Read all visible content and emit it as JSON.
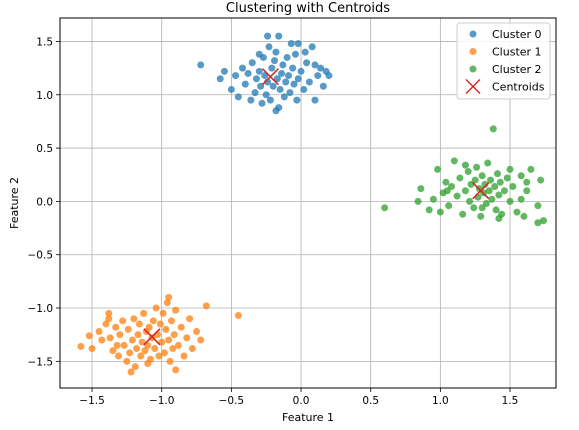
{
  "chart_data": {
    "type": "scatter",
    "title": "Clustering with Centroids",
    "xlabel": "Feature 1",
    "ylabel": "Feature 2",
    "xlim": [
      -1.73,
      1.83
    ],
    "ylim": [
      -1.75,
      1.72
    ],
    "xticks": [
      -1.5,
      -1.0,
      -0.5,
      0.0,
      0.5,
      1.0,
      1.5
    ],
    "xtick_labels": [
      "−1.5",
      "−1.0",
      "−0.5",
      "0.0",
      "0.5",
      "1.0",
      "1.5"
    ],
    "yticks": [
      -1.5,
      -1.0,
      -0.5,
      0.0,
      0.5,
      1.0,
      1.5
    ],
    "ytick_labels": [
      "−1.5",
      "−1.0",
      "−0.5",
      "0.0",
      "0.5",
      "1.0",
      "1.5"
    ],
    "grid": true,
    "legend": {
      "position": "top-right"
    },
    "series": [
      {
        "name": "Cluster 0",
        "color": "#1f77b4",
        "points": [
          [
            -0.72,
            1.28
          ],
          [
            -0.58,
            1.15
          ],
          [
            -0.55,
            1.22
          ],
          [
            -0.5,
            1.05
          ],
          [
            -0.47,
            1.18
          ],
          [
            -0.45,
            0.98
          ],
          [
            -0.42,
            1.25
          ],
          [
            -0.4,
            1.1
          ],
          [
            -0.38,
            1.2
          ],
          [
            -0.36,
            0.95
          ],
          [
            -0.35,
            1.3
          ],
          [
            -0.33,
            1.02
          ],
          [
            -0.32,
            1.15
          ],
          [
            -0.3,
            1.22
          ],
          [
            -0.29,
            1.08
          ],
          [
            -0.28,
            0.92
          ],
          [
            -0.27,
            1.35
          ],
          [
            -0.26,
            1.18
          ],
          [
            -0.25,
            1.0
          ],
          [
            -0.24,
            1.12
          ],
          [
            -0.23,
            1.45
          ],
          [
            -0.22,
            0.95
          ],
          [
            -0.21,
            1.25
          ],
          [
            -0.2,
            1.08
          ],
          [
            -0.19,
            1.32
          ],
          [
            -0.18,
            1.4
          ],
          [
            -0.17,
            1.15
          ],
          [
            -0.16,
            0.88
          ],
          [
            -0.15,
            1.05
          ],
          [
            -0.14,
            1.2
          ],
          [
            -0.13,
            1.28
          ],
          [
            -0.12,
            0.98
          ],
          [
            -0.11,
            1.12
          ],
          [
            -0.1,
            1.35
          ],
          [
            -0.09,
            1.18
          ],
          [
            -0.08,
            1.02
          ],
          [
            -0.07,
            1.48
          ],
          [
            -0.06,
            1.25
          ],
          [
            -0.05,
            1.1
          ],
          [
            -0.04,
            1.38
          ],
          [
            -0.03,
            0.95
          ],
          [
            -0.02,
            1.15
          ],
          [
            0.0,
            1.22
          ],
          [
            0.02,
            1.05
          ],
          [
            0.04,
            1.3
          ],
          [
            0.06,
            1.12
          ],
          [
            0.08,
            1.45
          ],
          [
            0.1,
            0.95
          ],
          [
            0.12,
            1.18
          ],
          [
            0.14,
            1.25
          ],
          [
            0.16,
            1.08
          ],
          [
            0.18,
            1.22
          ],
          [
            0.2,
            1.18
          ],
          [
            -0.18,
            0.85
          ],
          [
            -0.16,
            1.55
          ],
          [
            -0.24,
            1.55
          ],
          [
            -0.3,
            1.38
          ],
          [
            -0.02,
            1.48
          ],
          [
            0.03,
            1.4
          ],
          [
            0.1,
            1.28
          ]
        ]
      },
      {
        "name": "Cluster 1",
        "color": "#ff7f0e",
        "points": [
          [
            -1.58,
            -1.36
          ],
          [
            -1.52,
            -1.26
          ],
          [
            -1.5,
            -1.38
          ],
          [
            -1.45,
            -1.22
          ],
          [
            -1.43,
            -1.3
          ],
          [
            -1.4,
            -1.15
          ],
          [
            -1.38,
            -1.05
          ],
          [
            -1.37,
            -1.28
          ],
          [
            -1.35,
            -1.4
          ],
          [
            -1.33,
            -1.18
          ],
          [
            -1.31,
            -1.45
          ],
          [
            -1.3,
            -1.25
          ],
          [
            -1.28,
            -1.12
          ],
          [
            -1.27,
            -1.35
          ],
          [
            -1.25,
            -1.5
          ],
          [
            -1.24,
            -1.2
          ],
          [
            -1.23,
            -1.42
          ],
          [
            -1.21,
            -1.3
          ],
          [
            -1.2,
            -1.1
          ],
          [
            -1.19,
            -1.55
          ],
          [
            -1.18,
            -1.38
          ],
          [
            -1.17,
            -1.25
          ],
          [
            -1.16,
            -1.15
          ],
          [
            -1.15,
            -1.45
          ],
          [
            -1.14,
            -1.32
          ],
          [
            -1.13,
            -1.05
          ],
          [
            -1.12,
            -1.4
          ],
          [
            -1.11,
            -1.22
          ],
          [
            -1.1,
            -1.35
          ],
          [
            -1.09,
            -1.18
          ],
          [
            -1.08,
            -1.48
          ],
          [
            -1.07,
            -1.28
          ],
          [
            -1.06,
            -1.12
          ],
          [
            -1.05,
            -1.38
          ],
          [
            -1.04,
            -1.0
          ],
          [
            -1.03,
            -1.25
          ],
          [
            -1.02,
            -1.45
          ],
          [
            -1.01,
            -1.15
          ],
          [
            -1.0,
            -1.32
          ],
          [
            -0.99,
            -1.05
          ],
          [
            -0.98,
            -1.42
          ],
          [
            -0.97,
            -1.2
          ],
          [
            -0.96,
            -0.95
          ],
          [
            -0.95,
            -1.3
          ],
          [
            -0.94,
            -1.5
          ],
          [
            -0.93,
            -1.12
          ],
          [
            -0.92,
            -1.38
          ],
          [
            -0.91,
            -1.25
          ],
          [
            -0.9,
            -1.02
          ],
          [
            -0.88,
            -1.35
          ],
          [
            -0.86,
            -1.18
          ],
          [
            -0.84,
            -1.45
          ],
          [
            -0.82,
            -1.28
          ],
          [
            -0.8,
            -1.1
          ],
          [
            -0.78,
            -1.38
          ],
          [
            -0.75,
            -1.22
          ],
          [
            -0.72,
            -1.3
          ],
          [
            -0.68,
            -0.98
          ],
          [
            -0.45,
            -1.07
          ],
          [
            -1.22,
            -1.6
          ],
          [
            -0.9,
            -1.58
          ],
          [
            -1.1,
            -1.52
          ],
          [
            -1.32,
            -1.35
          ],
          [
            -0.95,
            -0.9
          ],
          [
            -1.38,
            -1.1
          ]
        ]
      },
      {
        "name": "Cluster 2",
        "color": "#2ca02c",
        "points": [
          [
            0.6,
            -0.06
          ],
          [
            0.84,
            0.0
          ],
          [
            0.86,
            0.12
          ],
          [
            0.92,
            -0.08
          ],
          [
            0.95,
            0.02
          ],
          [
            0.98,
            0.3
          ],
          [
            1.0,
            -0.1
          ],
          [
            1.02,
            0.08
          ],
          [
            1.04,
            0.18
          ],
          [
            1.06,
            -0.04
          ],
          [
            1.08,
            0.14
          ],
          [
            1.1,
            0.38
          ],
          [
            1.12,
            0.05
          ],
          [
            1.14,
            0.22
          ],
          [
            1.16,
            -0.12
          ],
          [
            1.18,
            0.1
          ],
          [
            1.2,
            0.28
          ],
          [
            1.21,
            0.0
          ],
          [
            1.22,
            0.16
          ],
          [
            1.24,
            -0.06
          ],
          [
            1.25,
            0.2
          ],
          [
            1.26,
            0.32
          ],
          [
            1.27,
            0.04
          ],
          [
            1.28,
            0.12
          ],
          [
            1.29,
            -0.14
          ],
          [
            1.3,
            0.24
          ],
          [
            1.31,
            0.08
          ],
          [
            1.32,
            0.16
          ],
          [
            1.33,
            -0.02
          ],
          [
            1.34,
            0.36
          ],
          [
            1.35,
            0.1
          ],
          [
            1.36,
            0.2
          ],
          [
            1.37,
            0.02
          ],
          [
            1.38,
            0.68
          ],
          [
            1.39,
            0.14
          ],
          [
            1.4,
            -0.08
          ],
          [
            1.41,
            0.26
          ],
          [
            1.42,
            0.06
          ],
          [
            1.43,
            0.18
          ],
          [
            1.44,
            -0.12
          ],
          [
            1.46,
            0.1
          ],
          [
            1.48,
            0.22
          ],
          [
            1.5,
            0.0
          ],
          [
            1.52,
            0.14
          ],
          [
            1.55,
            -0.1
          ],
          [
            1.58,
            0.24
          ],
          [
            1.6,
            -0.14
          ],
          [
            1.62,
            0.1
          ],
          [
            1.65,
            0.3
          ],
          [
            1.7,
            -0.04
          ],
          [
            1.72,
            0.2
          ],
          [
            1.74,
            -0.18
          ],
          [
            1.7,
            -0.2
          ],
          [
            1.62,
            0.18
          ],
          [
            1.3,
            -0.06
          ],
          [
            1.18,
            0.34
          ],
          [
            1.05,
            0.1
          ],
          [
            1.5,
            0.3
          ],
          [
            1.42,
            -0.16
          ],
          [
            1.58,
            0.02
          ]
        ]
      },
      {
        "name": "Centroids",
        "color": "#d62728",
        "marker": "x",
        "points": [
          [
            -0.22,
            1.17
          ],
          [
            -1.07,
            -1.27
          ],
          [
            1.29,
            0.1
          ]
        ]
      }
    ]
  }
}
